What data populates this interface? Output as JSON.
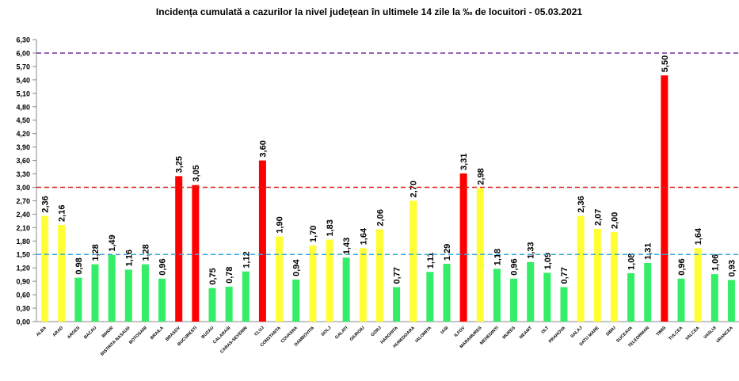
{
  "chart_data": {
    "type": "bar",
    "title": "Incidența cumulată a cazurilor la nivel județean în ultimele 14 zile la ‰ de locuitori - 05.03.2021",
    "categories": [
      "ALBA",
      "ARAD",
      "ARGES",
      "BACAU",
      "BIHOR",
      "BISTRITA NASAUD",
      "BOTOSANI",
      "BRAILA",
      "BRASOV",
      "BUCURESTI",
      "BUZAU",
      "CALARASI",
      "CARAS-SEVERIN",
      "CLUJ",
      "CONSTANTA",
      "COVASNA",
      "DAMBOVITA",
      "DOLJ",
      "GALATI",
      "GIURGIU",
      "GORJ",
      "HARGHITA",
      "HUNEDOARA",
      "IALOMITA",
      "IASI",
      "ILFOV",
      "MARAMURES",
      "MEHEDINTI",
      "MURES",
      "NEAMT",
      "OLT",
      "PRAHOVA",
      "SALAJ",
      "SATU MARE",
      "SIBIU",
      "SUCEAVA",
      "TELEORMAN",
      "TIMIS",
      "TULCEA",
      "VALCEA",
      "VASLUI",
      "VRANCEA"
    ],
    "values": [
      2.36,
      2.16,
      0.98,
      1.28,
      1.49,
      1.16,
      1.28,
      0.96,
      3.25,
      3.05,
      0.75,
      0.78,
      1.12,
      3.6,
      1.9,
      0.94,
      1.7,
      1.83,
      1.43,
      1.64,
      2.06,
      0.77,
      2.7,
      1.11,
      1.29,
      3.31,
      2.98,
      1.18,
      0.96,
      1.33,
      1.09,
      0.77,
      2.36,
      2.07,
      2.0,
      1.08,
      1.31,
      5.5,
      0.96,
      1.64,
      1.06,
      0.93
    ],
    "value_labels": [
      "2,36",
      "2,16",
      "0,98",
      "1,28",
      "1,49",
      "1,16",
      "1,28",
      "0,96",
      "3,25",
      "3,05",
      "0,75",
      "0,78",
      "1,12",
      "3,60",
      "1,90",
      "0,94",
      "1,70",
      "1,83",
      "1,43",
      "1,64",
      "2,06",
      "0,77",
      "2,70",
      "1,11",
      "1,29",
      "3,31",
      "2,98",
      "1,18",
      "0,96",
      "1,33",
      "1,09",
      "0,77",
      "2,36",
      "2,07",
      "2,00",
      "1,08",
      "1,31",
      "5,50",
      "0,96",
      "1,64",
      "1,06",
      "0,93"
    ],
    "colors": [
      "#ffff33",
      "#ffff33",
      "#33ee66",
      "#33ee66",
      "#33ee66",
      "#33ee66",
      "#33ee66",
      "#33ee66",
      "#ff0000",
      "#ff0000",
      "#33ee66",
      "#33ee66",
      "#33ee66",
      "#ff0000",
      "#ffff33",
      "#33ee66",
      "#ffff33",
      "#ffff33",
      "#33ee66",
      "#ffff33",
      "#ffff33",
      "#33ee66",
      "#ffff33",
      "#33ee66",
      "#33ee66",
      "#ff0000",
      "#ffff33",
      "#33ee66",
      "#33ee66",
      "#33ee66",
      "#33ee66",
      "#33ee66",
      "#ffff33",
      "#ffff33",
      "#ffff33",
      "#33ee66",
      "#33ee66",
      "#ff0000",
      "#33ee66",
      "#ffff33",
      "#33ee66",
      "#33ee66"
    ],
    "ylim": [
      0,
      6.3
    ],
    "yticks": [
      {
        "value": 0,
        "label": "0,00"
      },
      {
        "value": 0.3,
        "label": "0,30"
      },
      {
        "value": 0.6,
        "label": "0,60"
      },
      {
        "value": 0.9,
        "label": "0,90"
      },
      {
        "value": 1.2,
        "label": "1,20"
      },
      {
        "value": 1.5,
        "label": "1,50"
      },
      {
        "value": 1.8,
        "label": "1,80"
      },
      {
        "value": 2.1,
        "label": "2,10"
      },
      {
        "value": 2.4,
        "label": "2,40"
      },
      {
        "value": 2.7,
        "label": "2,70"
      },
      {
        "value": 3,
        "label": "3,00"
      },
      {
        "value": 3.3,
        "label": "3,30"
      },
      {
        "value": 3.6,
        "label": "3,60"
      },
      {
        "value": 3.9,
        "label": "3,90"
      },
      {
        "value": 4.2,
        "label": "4,20"
      },
      {
        "value": 4.5,
        "label": "4,50"
      },
      {
        "value": 4.8,
        "label": "4,80"
      },
      {
        "value": 5.1,
        "label": "5,10"
      },
      {
        "value": 5.4,
        "label": "5,40"
      },
      {
        "value": 5.7,
        "label": "5,70"
      },
      {
        "value": 6,
        "label": "6,00"
      },
      {
        "value": 6.3,
        "label": "6,30"
      }
    ],
    "reference_lines": [
      {
        "value": 1.5,
        "color": "#3aa6dd"
      },
      {
        "value": 3,
        "color": "#e02020"
      },
      {
        "value": 6,
        "color": "#7030a0"
      }
    ]
  }
}
